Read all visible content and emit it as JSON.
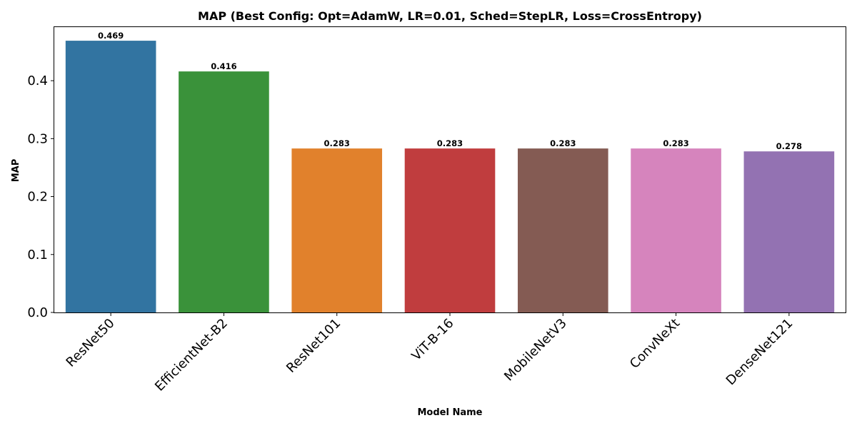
{
  "chart_data": {
    "type": "bar",
    "title": "MAP (Best Config: Opt=AdamW, LR=0.01, Sched=StepLR, Loss=CrossEntropy)",
    "xlabel": "Model Name",
    "ylabel": "MAP",
    "categories": [
      "ResNet50",
      "EfficientNet-B2",
      "ResNet101",
      "ViT-B-16",
      "MobileNetV3",
      "ConvNeXt",
      "DenseNet121"
    ],
    "values": [
      0.469,
      0.416,
      0.283,
      0.283,
      0.283,
      0.283,
      0.278
    ],
    "data_labels": [
      "0.469",
      "0.416",
      "0.283",
      "0.283",
      "0.283",
      "0.283",
      "0.278"
    ],
    "colors": [
      "#3274a1",
      "#3a923a",
      "#e1812c",
      "#c03d3e",
      "#845b53",
      "#d684bd",
      "#9372b2"
    ],
    "yticks": [
      0.0,
      0.1,
      0.2,
      0.3,
      0.4
    ],
    "ytick_labels": [
      "0.0",
      "0.1",
      "0.2",
      "0.3",
      "0.4"
    ],
    "ylim": [
      0,
      0.4925
    ],
    "grid": false,
    "legend": "none"
  }
}
